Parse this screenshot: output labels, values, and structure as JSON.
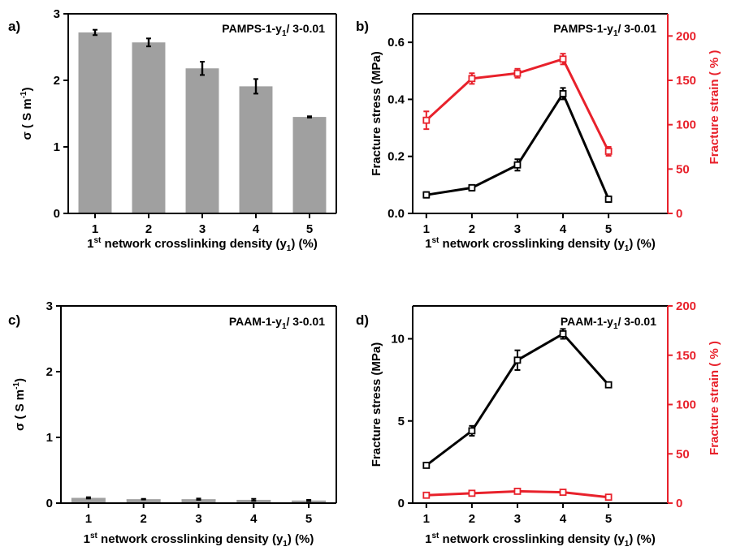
{
  "chart_data": [
    {
      "panel_label": "a)",
      "type": "bar",
      "title": "PAMPS-1-y",
      "title_sub": "1",
      "title_suffix": "/ 3-0.01",
      "xlabel": "1",
      "xlabel_sup": "st",
      "xlabel_mid": " network crosslinking density (y",
      "xlabel_sub": "1",
      "xlabel_end": ") (%)",
      "ylabel": "σ ( S m",
      "ylabel_sup": "-1",
      "ylabel_end": ")",
      "categories": [
        "1",
        "2",
        "3",
        "4",
        "5"
      ],
      "values": [
        2.72,
        2.57,
        2.18,
        1.91,
        1.45
      ],
      "errors": [
        0.04,
        0.06,
        0.1,
        0.11,
        0.01
      ],
      "ylim": [
        0,
        3
      ],
      "yticks": [
        "0",
        "1",
        "2",
        "3"
      ],
      "colors": {
        "bar": "#a0a0a0",
        "error": "#000000"
      }
    },
    {
      "panel_label": "b)",
      "type": "line",
      "title": "PAMPS-1-y",
      "title_sub": "1",
      "title_suffix": "/ 3-0.01",
      "xlabel": "1",
      "xlabel_sup": "st",
      "xlabel_mid": " network crosslinking density (y",
      "xlabel_sub": "1",
      "xlabel_end": ") (%)",
      "ylabel": "Fracture stress (MPa)",
      "y2label": "Fracture strain  ( % )",
      "categories": [
        "1",
        "2",
        "3",
        "4",
        "5"
      ],
      "series": [
        {
          "axis": "left",
          "color": "#000000",
          "values": [
            0.065,
            0.09,
            0.17,
            0.42,
            0.05
          ],
          "errors": [
            0.01,
            0.01,
            0.02,
            0.02,
            0.01
          ]
        },
        {
          "axis": "right",
          "color": "#e8212b",
          "values": [
            105,
            152,
            158,
            174,
            70
          ],
          "errors": [
            10,
            6,
            5,
            6,
            5
          ]
        }
      ],
      "ylim": [
        0,
        0.7
      ],
      "yticks": [
        "0.0",
        "0.2",
        "0.4",
        "0.6"
      ],
      "y2lim": [
        0,
        225
      ],
      "y2ticks": [
        "0",
        "50",
        "100",
        "150",
        "200"
      ]
    },
    {
      "panel_label": "c)",
      "type": "bar",
      "title": "PAAM-1-y",
      "title_sub": "1",
      "title_suffix": "/ 3-0.01",
      "xlabel": "1",
      "xlabel_sup": "st",
      "xlabel_mid": " network crosslinking density (y",
      "xlabel_sub": "1",
      "xlabel_end": ") (%)",
      "ylabel": "σ ( S m",
      "ylabel_sup": "-1",
      "ylabel_end": ")",
      "categories": [
        "1",
        "2",
        "3",
        "4",
        "5"
      ],
      "values": [
        0.08,
        0.06,
        0.06,
        0.05,
        0.04
      ],
      "errors": [
        0.01,
        0.005,
        0.01,
        0.015,
        0.01
      ],
      "ylim": [
        0,
        3
      ],
      "yticks": [
        "0",
        "1",
        "2",
        "3"
      ],
      "colors": {
        "bar": "#a0a0a0",
        "error": "#000000"
      }
    },
    {
      "panel_label": "d)",
      "type": "line",
      "title": "PAAM-1-y",
      "title_sub": "1",
      "title_suffix": "/ 3-0.01",
      "xlabel": "1",
      "xlabel_sup": "st",
      "xlabel_mid": " network crosslinking density (y",
      "xlabel_sub": "1",
      "xlabel_end": ") (%)",
      "ylabel": "Fracture stress (MPa)",
      "y2label": "Fracture strain  ( % )",
      "categories": [
        "1",
        "2",
        "3",
        "4",
        "5"
      ],
      "series": [
        {
          "axis": "left",
          "color": "#000000",
          "values": [
            2.3,
            4.4,
            8.7,
            10.3,
            7.2
          ],
          "errors": [
            0.15,
            0.3,
            0.6,
            0.3,
            0.05
          ]
        },
        {
          "axis": "right",
          "color": "#e8212b",
          "values": [
            8,
            10,
            12,
            11,
            6
          ],
          "errors": [
            0.5,
            0.5,
            0.5,
            0.5,
            0.5
          ]
        }
      ],
      "ylim": [
        0,
        12
      ],
      "yticks": [
        "0",
        "5",
        "10"
      ],
      "y2lim": [
        0,
        200
      ],
      "y2ticks": [
        "0",
        "50",
        "100",
        "150",
        "200"
      ]
    }
  ]
}
